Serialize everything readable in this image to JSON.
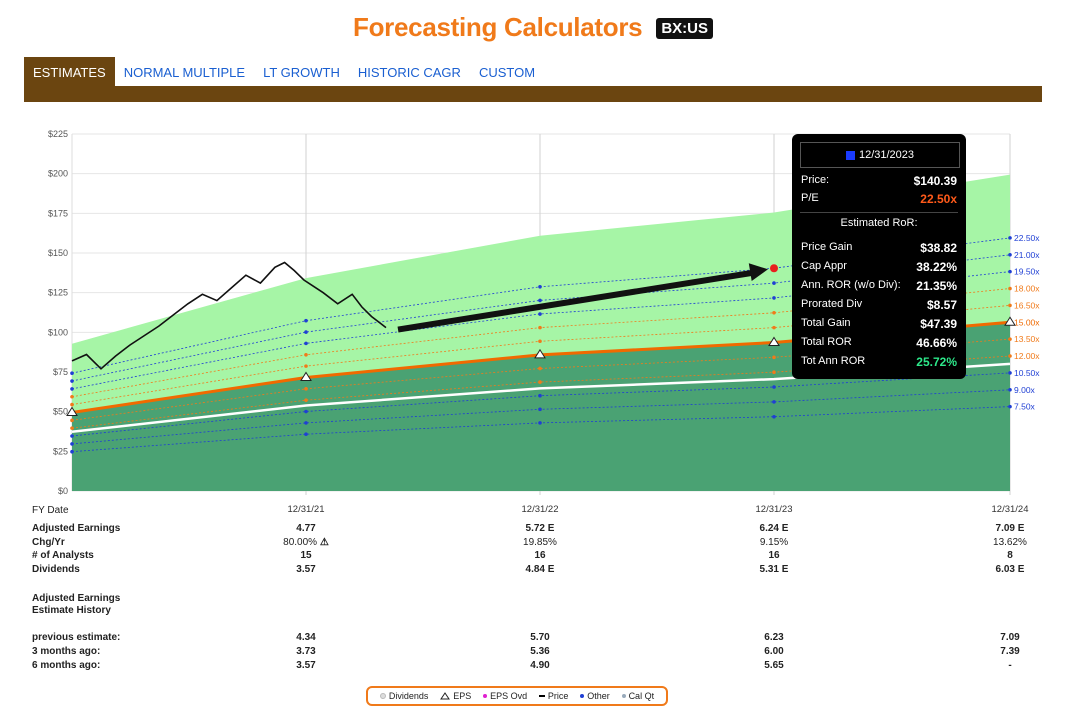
{
  "header": {
    "title": "Forecasting Calculators",
    "ticker": "BX:US"
  },
  "tabs": [
    {
      "label": "ESTIMATES",
      "active": true
    },
    {
      "label": "NORMAL MULTIPLE",
      "active": false
    },
    {
      "label": "LT GROWTH",
      "active": false
    },
    {
      "label": "HISTORIC CAGR",
      "active": false
    },
    {
      "label": "CUSTOM",
      "active": false
    }
  ],
  "colors": {
    "accent": "#f07a1a",
    "tab_brown": "#6b4510",
    "link_blue": "#1a5fd1",
    "green_light": "#a6f5a6",
    "green_dark": "#4aa273",
    "eps_orange": "#f06a00"
  },
  "chart_data": {
    "type": "area",
    "ylim": [
      0,
      225
    ],
    "yticks": [
      "$225",
      "$200",
      "$175",
      "$150",
      "$125",
      "$100",
      "$75",
      "$50",
      "$25",
      "$0"
    ],
    "x_axis_label": "FY Date",
    "x": [
      "12/31/21",
      "12/31/22",
      "12/31/23",
      "12/31/24"
    ],
    "eps": [
      4.77,
      5.72,
      6.24,
      7.09
    ],
    "start_eps": 3.3,
    "dividends": [
      3.57,
      4.84,
      5.31,
      6.03
    ],
    "start_div": 2.9,
    "pe_multiples": [
      {
        "label": "22.50x",
        "pe": 22.5,
        "color": "#1f3fd4"
      },
      {
        "label": "21.00x",
        "pe": 21.0,
        "color": "#1f3fd4"
      },
      {
        "label": "19.50x",
        "pe": 19.5,
        "color": "#1f3fd4"
      },
      {
        "label": "18.00x",
        "pe": 18.0,
        "color": "#f07a1a"
      },
      {
        "label": "16.50x",
        "pe": 16.5,
        "color": "#f07a1a"
      },
      {
        "label": "15.00x",
        "pe": 15.0,
        "color": "#f06a00"
      },
      {
        "label": "13.50x",
        "pe": 13.5,
        "color": "#f07a1a"
      },
      {
        "label": "12.00x",
        "pe": 12.0,
        "color": "#f07a1a"
      },
      {
        "label": "10.50x",
        "pe": 10.5,
        "color": "#1f3fd4"
      },
      {
        "label": "9.00x",
        "pe": 9.0,
        "color": "#1f3fd4"
      },
      {
        "label": "7.50x",
        "pe": 7.5,
        "color": "#1f3fd4"
      }
    ],
    "normal_pe": 15.0,
    "price_history": [
      [
        0.0,
        82
      ],
      [
        0.3,
        86
      ],
      [
        0.6,
        77
      ],
      [
        0.9,
        85
      ],
      [
        1.2,
        92
      ],
      [
        1.5,
        98
      ],
      [
        1.8,
        104
      ],
      [
        2.1,
        111
      ],
      [
        2.4,
        118
      ],
      [
        2.7,
        124
      ],
      [
        3.0,
        120
      ],
      [
        3.3,
        128
      ],
      [
        3.6,
        136
      ],
      [
        3.9,
        131
      ],
      [
        4.2,
        141
      ],
      [
        4.4,
        144
      ],
      [
        4.6,
        139
      ],
      [
        4.8,
        133
      ],
      [
        5.0,
        129
      ],
      [
        5.2,
        125
      ],
      [
        5.5,
        118
      ],
      [
        5.8,
        124
      ],
      [
        6.0,
        116
      ],
      [
        6.2,
        110
      ],
      [
        6.5,
        103
      ]
    ],
    "forecast_target": {
      "x": "12/31/23",
      "price": 140.39
    }
  },
  "tooltip": {
    "date": "12/31/2023",
    "price_label": "Price:",
    "price": "$140.39",
    "pe_label": "P/E",
    "pe": "22.50x",
    "subheading": "Estimated RoR:",
    "rows": [
      {
        "label": "Price Gain",
        "value": "$38.82",
        "color": "#ffffff"
      },
      {
        "label": "Cap Appr",
        "value": "38.22%",
        "color": "#ffffff"
      },
      {
        "label": "Ann. ROR (w/o Div):",
        "value": "21.35%",
        "color": "#ffffff"
      },
      {
        "label": "Prorated Div",
        "value": "$8.57",
        "color": "#ffffff"
      },
      {
        "label": "Total Gain",
        "value": "$47.39",
        "color": "#ffffff"
      },
      {
        "label": "Total ROR",
        "value": "46.66%",
        "color": "#ffffff"
      },
      {
        "label": "Tot Ann ROR",
        "value": "25.72%",
        "color": "#2de88a"
      }
    ]
  },
  "table": {
    "rows": [
      {
        "label": "Adjusted Earnings",
        "values": [
          "4.77",
          "5.72 E",
          "6.24 E",
          "7.09 E"
        ],
        "bold": true
      },
      {
        "label": "Chg/Yr",
        "values": [
          "80.00%",
          "19.85%",
          "9.15%",
          "13.62%"
        ],
        "bold": false,
        "warn_first": true
      },
      {
        "label": "# of Analysts",
        "values": [
          "15",
          "16",
          "16",
          "8"
        ],
        "bold": true
      },
      {
        "label": "Dividends",
        "values": [
          "3.57",
          "4.84 E",
          "5.31 E",
          "6.03 E"
        ],
        "bold": true
      }
    ],
    "history_title_1": "Adjusted Earnings",
    "history_title_2": "Estimate History",
    "history_rows": [
      {
        "label": "previous estimate:",
        "values": [
          "4.34",
          "5.70",
          "6.23",
          "7.09"
        ]
      },
      {
        "label": "3 months ago:",
        "values": [
          "3.73",
          "5.36",
          "6.00",
          "7.39"
        ]
      },
      {
        "label": "6 months ago:",
        "values": [
          "3.57",
          "4.90",
          "5.65",
          "-"
        ]
      }
    ]
  },
  "legend": [
    {
      "label": "Dividends",
      "icon": "dot-white"
    },
    {
      "label": "EPS",
      "icon": "triangle"
    },
    {
      "label": "EPS Ovd",
      "icon": "dot-magenta"
    },
    {
      "label": "Price",
      "icon": "dash-black"
    },
    {
      "label": "Other",
      "icon": "dot-blue"
    },
    {
      "label": "Cal Qt",
      "icon": "dot-gray"
    }
  ]
}
